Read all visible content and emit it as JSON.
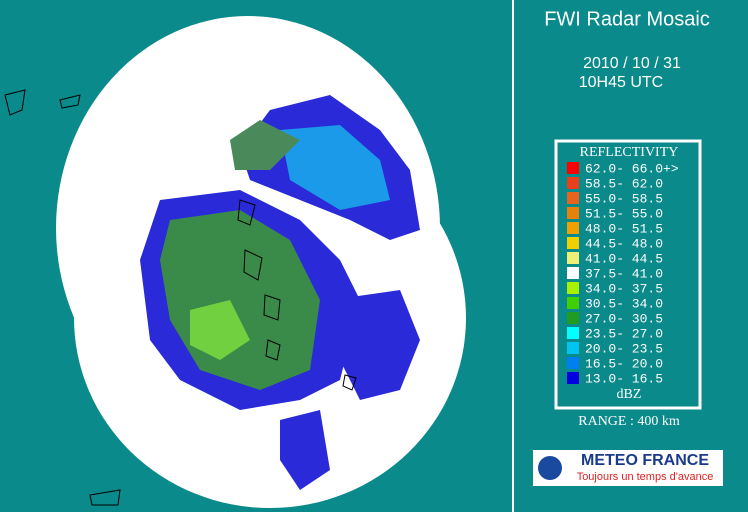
{
  "title": "FWI Radar Mosaic",
  "date": "2010 / 10 / 31",
  "time": "10H45 UTC",
  "legend": {
    "title": "REFLECTIVITY",
    "unit": "dBZ",
    "items": [
      {
        "label": "62.0- 66.0+>",
        "color": "#ff0000"
      },
      {
        "label": "58.5- 62.0",
        "color": "#e8401c"
      },
      {
        "label": "55.0- 58.5",
        "color": "#e8641c"
      },
      {
        "label": "51.5- 55.0",
        "color": "#e8800c"
      },
      {
        "label": "48.0- 51.5",
        "color": "#f0a000"
      },
      {
        "label": "44.5- 48.0",
        "color": "#f0d000"
      },
      {
        "label": "41.0- 44.5",
        "color": "#f0f078"
      },
      {
        "label": "37.5- 41.0",
        "color": "#ffffff"
      },
      {
        "label": "34.0- 37.5",
        "color": "#a8f000"
      },
      {
        "label": "30.5- 34.0",
        "color": "#40d000"
      },
      {
        "label": "27.0- 30.5",
        "color": "#209c20"
      },
      {
        "label": "23.5- 27.0",
        "color": "#00ffff"
      },
      {
        "label": "20.0- 23.5",
        "color": "#00c4f0"
      },
      {
        "label": "16.5- 20.0",
        "color": "#0080f0"
      },
      {
        "label": "13.0- 16.5",
        "color": "#0000e0"
      }
    ]
  },
  "range": "RANGE : 400 km",
  "logo": {
    "name": "METEO FRANCE",
    "tagline": "Toujours un temps d'avance"
  }
}
